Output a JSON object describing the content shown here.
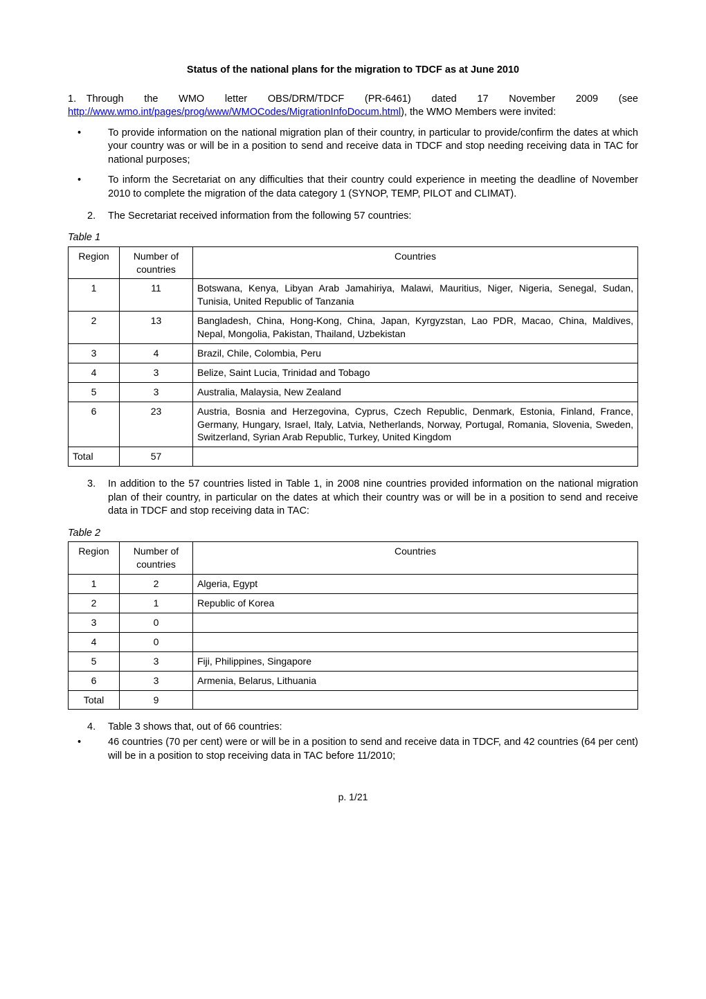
{
  "title": "Status of the national plans for the migration to TDCF as at June 2010",
  "p1_lead": "1. Through the WMO letter OBS/DRM/TDCF (PR-6461) dated 17 November 2009 (see ",
  "p1_link_text": "http://www.wmo.int/pages/prog/www/WMOCodes/MigrationInfoDocum.html",
  "p1_tail": "), the WMO Members were invited:",
  "bullet1": "To provide information on the national migration plan of their country, in particular to provide/confirm the dates at which your country was or will be in a position to send and receive data in TDCF and stop needing receiving data in TAC for national purposes;",
  "bullet2": "To inform the Secretariat on any difficulties that their country could experience in meeting the deadline of November 2010 to complete the migration of the data category 1 (SYNOP, TEMP, PILOT and CLIMAT).",
  "num2": "2.",
  "p2": "The Secretariat received information from the following 57 countries:",
  "table1": {
    "caption": "Table 1",
    "headers": {
      "region": "Region",
      "num": "Number of countries",
      "countries": "Countries"
    },
    "rows": [
      {
        "region": "1",
        "num": "11",
        "countries": "Botswana, Kenya, Libyan Arab Jamahiriya, Malawi, Mauritius, Niger, Nigeria, Senegal, Sudan, Tunisia, United Republic of Tanzania"
      },
      {
        "region": "2",
        "num": "13",
        "countries": "Bangladesh, China, Hong-Kong, China, Japan, Kyrgyzstan, Lao PDR, Macao, China, Maldives, Nepal, Mongolia, Pakistan, Thailand, Uzbekistan"
      },
      {
        "region": "3",
        "num": "4",
        "countries": "Brazil, Chile, Colombia, Peru"
      },
      {
        "region": "4",
        "num": "3",
        "countries": "Belize, Saint Lucia, Trinidad and Tobago"
      },
      {
        "region": "5",
        "num": "3",
        "countries": "Australia, Malaysia, New Zealand"
      },
      {
        "region": "6",
        "num": "23",
        "countries": "Austria, Bosnia and Herzegovina, Cyprus, Czech Republic, Denmark, Estonia, Finland, France, Germany, Hungary, Israel, Italy, Latvia, Netherlands, Norway, Portugal, Romania, Slovenia, Sweden, Switzerland, Syrian Arab Republic, Turkey, United Kingdom"
      }
    ],
    "total_label": "Total",
    "total_num": "57"
  },
  "num3": "3.",
  "p3": "In addition to the 57 countries listed in Table 1, in 2008 nine countries provided information on the national migration plan of their country, in particular on the dates at which their country was or will be in a position to send and receive data in TDCF and stop receiving data in TAC:",
  "table2": {
    "caption": "Table 2",
    "headers": {
      "region": "Region",
      "num": "Number of countries",
      "countries": "Countries"
    },
    "rows": [
      {
        "region": "1",
        "num": "2",
        "countries": "Algeria, Egypt"
      },
      {
        "region": "2",
        "num": "1",
        "countries": "Republic of Korea"
      },
      {
        "region": "3",
        "num": "0",
        "countries": ""
      },
      {
        "region": "4",
        "num": "0",
        "countries": ""
      },
      {
        "region": "5",
        "num": "3",
        "countries": "Fiji, Philippines, Singapore"
      },
      {
        "region": "6",
        "num": "3",
        "countries": "Armenia, Belarus, Lithuania"
      }
    ],
    "total_label": "Total",
    "total_num": "9"
  },
  "num4": "4.",
  "p4": "Table 3 shows that, out of 66 countries:",
  "bullet4_1": "46 countries (70 per cent)  were or will be in a position to send and receive data in TDCF, and 42 countries (64 per cent) will  be in a position to stop receiving data in TAC before 11/2010;",
  "footer": "p. 1/21"
}
